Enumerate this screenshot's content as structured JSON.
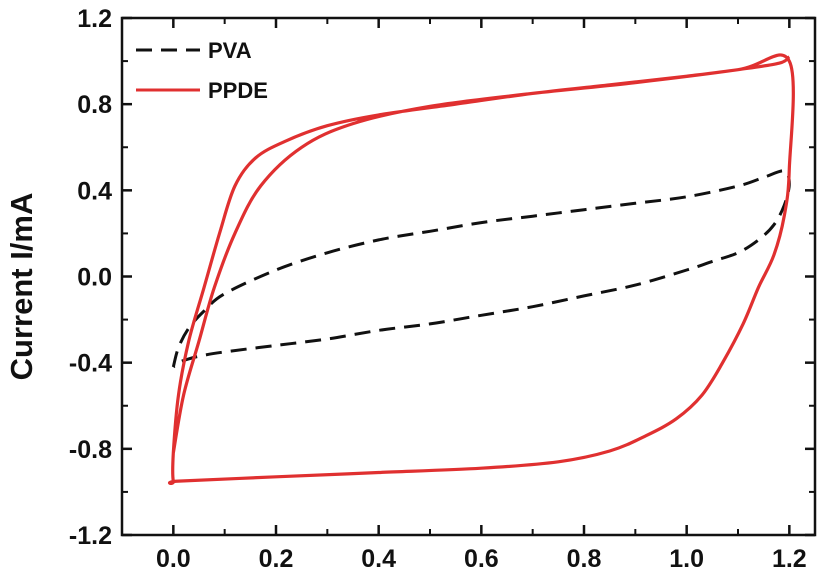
{
  "chart_data": {
    "type": "line",
    "title": "",
    "xlabel": "",
    "ylabel": "Current I/mA",
    "xlim": [
      -0.1,
      1.25
    ],
    "ylim": [
      -1.2,
      1.2
    ],
    "x_ticks": [
      0.0,
      0.2,
      0.4,
      0.6,
      0.8,
      1.0,
      1.2
    ],
    "x_tick_labels": [
      "0.0",
      "0.2",
      "0.4",
      "0.6",
      "0.8",
      "1.0",
      "1.2"
    ],
    "y_ticks": [
      -1.2,
      -0.8,
      -0.4,
      0.0,
      0.4,
      0.8,
      1.2
    ],
    "y_tick_labels": [
      "-1.2",
      "-0.8",
      "-0.4",
      "0.0",
      "0.4",
      "0.8",
      "1.2"
    ],
    "grid": false,
    "legend_position": "top-left",
    "series": [
      {
        "name": "PVA",
        "color": "#111111",
        "dash": true,
        "x": [
          0.0,
          0.01,
          0.03,
          0.06,
          0.1,
          0.2,
          0.3,
          0.4,
          0.5,
          0.6,
          0.7,
          0.8,
          0.9,
          1.0,
          1.1,
          1.15,
          1.19,
          1.2,
          1.19,
          1.17,
          1.14,
          1.1,
          1.05,
          1.0,
          0.9,
          0.8,
          0.7,
          0.6,
          0.5,
          0.4,
          0.3,
          0.2,
          0.1,
          0.05,
          0.02,
          0.01,
          0.0
        ],
        "y": [
          -0.42,
          -0.33,
          -0.24,
          -0.16,
          -0.08,
          0.03,
          0.11,
          0.17,
          0.21,
          0.25,
          0.28,
          0.31,
          0.34,
          0.37,
          0.42,
          0.46,
          0.49,
          0.43,
          0.33,
          0.24,
          0.17,
          0.11,
          0.07,
          0.03,
          -0.04,
          -0.09,
          -0.14,
          -0.18,
          -0.22,
          -0.25,
          -0.29,
          -0.32,
          -0.35,
          -0.37,
          -0.39,
          -0.4,
          -0.42
        ]
      },
      {
        "name": "PPDE",
        "color": "#e03030",
        "dash": false,
        "x": [
          0.0,
          0.02,
          0.05,
          0.08,
          0.12,
          0.17,
          0.25,
          0.35,
          0.5,
          0.7,
          0.9,
          1.1,
          1.2,
          1.2,
          1.19,
          1.17,
          1.14,
          1.11,
          1.07,
          1.03,
          0.98,
          0.92,
          0.85,
          0.75,
          0.6,
          0.4,
          0.2,
          0.01,
          0.0,
          0.0,
          0.01,
          0.03,
          0.06,
          0.09,
          0.12,
          0.16,
          0.22,
          0.3,
          0.4,
          0.55,
          0.7,
          0.85,
          1.0,
          1.1,
          1.18,
          1.2
        ],
        "y": [
          -0.82,
          -0.55,
          -0.3,
          -0.05,
          0.2,
          0.42,
          0.6,
          0.71,
          0.79,
          0.85,
          0.9,
          0.96,
          1.0,
          0.5,
          0.28,
          0.1,
          -0.05,
          -0.22,
          -0.4,
          -0.55,
          -0.66,
          -0.74,
          -0.81,
          -0.86,
          -0.89,
          -0.91,
          -0.93,
          -0.95,
          -0.95,
          -0.82,
          -0.55,
          -0.3,
          -0.05,
          0.2,
          0.42,
          0.55,
          0.63,
          0.7,
          0.75,
          0.8,
          0.85,
          0.89,
          0.93,
          0.96,
          0.99,
          1.02
        ]
      }
    ]
  }
}
